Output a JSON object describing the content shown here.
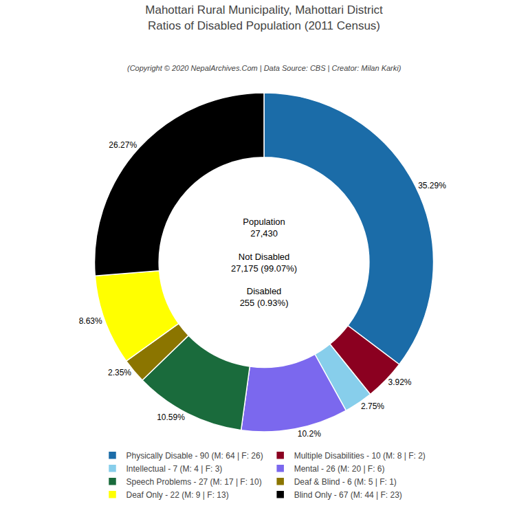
{
  "chart_data": {
    "type": "pie",
    "title": "Mahottari Rural Municipality, Mahottari District\nRatios of Disabled Population (2011 Census)",
    "subtitle": "(Copyright © 2020 NepalArchives.Com | Data Source: CBS | Creator: Milan Karki)",
    "categories": [
      "Physically Disable - 90 (M: 64 | F: 26)",
      "Multiple Disabilities - 10 (M: 8 | F: 2)",
      "Intellectual - 7 (M: 4 | F: 3)",
      "Mental - 26 (M: 20 | F: 6)",
      "Speech Problems - 27 (M: 17 | F: 10)",
      "Deaf & Blind - 6 (M: 5 | F: 1)",
      "Deaf Only - 22 (M: 9 | F: 13)",
      "Blind Only - 67 (M: 44 | F: 23)"
    ],
    "values": [
      35.29,
      3.92,
      2.75,
      10.2,
      10.59,
      2.35,
      8.63,
      26.27
    ],
    "value_labels": [
      "35.29%",
      "3.92%",
      "2.75%",
      "10.2%",
      "10.59%",
      "2.35%",
      "8.63%",
      "26.27%"
    ],
    "data_labels": true,
    "colors": [
      "#1B6CA8",
      "#8B0020",
      "#87CEEB",
      "#7B68EE",
      "#1A6B3C",
      "#8B7500",
      "#FFFF00",
      "#000000"
    ],
    "annotations": [
      "Population\n27,430\n\nNot Disabled\n27,175 (99.07%)\n\nDisabled\n255 (0.93%)"
    ],
    "legend": "bottom"
  }
}
